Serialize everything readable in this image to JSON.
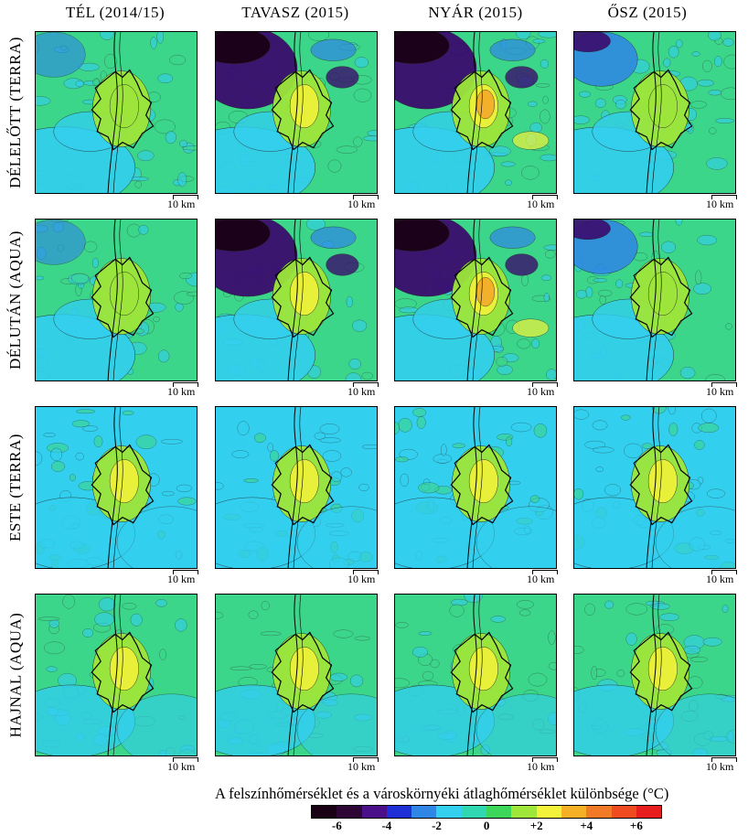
{
  "columns": [
    "TÉL (2014/15)",
    "TAVASZ (2015)",
    "NYÁR (2015)",
    "ŐSZ (2015)"
  ],
  "rows": [
    "DÉLELŐTT (TERRA)",
    "DÉLUTÁN (AQUA)",
    "ESTE (TERRA)",
    "HAJNAL (AQUA)"
  ],
  "scale_label": "10 km",
  "legend": {
    "title": "A felszínhőmérséklet és a városkörnyéki átlaghőmérséklet különbsége (°C)",
    "colors": [
      "#1a0015",
      "#2e0636",
      "#4c0f8a",
      "#1f2fd6",
      "#2f86e6",
      "#33cfee",
      "#2fd8b0",
      "#3cd65a",
      "#9ee63a",
      "#f2f23a",
      "#f5b026",
      "#f27a26",
      "#ef4a20",
      "#e81e1e"
    ],
    "tick_labels": [
      "-6",
      "-4",
      "-2",
      "0",
      "+2",
      "+4",
      "+6"
    ]
  },
  "panel_palette": {
    "cold_deep": "#1a0015",
    "cold": "#3a0c6e",
    "cool": "#2f86e6",
    "neutral_cyan": "#33cfee",
    "neutral_green": "#3cd68a",
    "warm_green": "#9ee63a",
    "warm_yellow": "#f2f23a",
    "hot": "#f5a628"
  }
}
